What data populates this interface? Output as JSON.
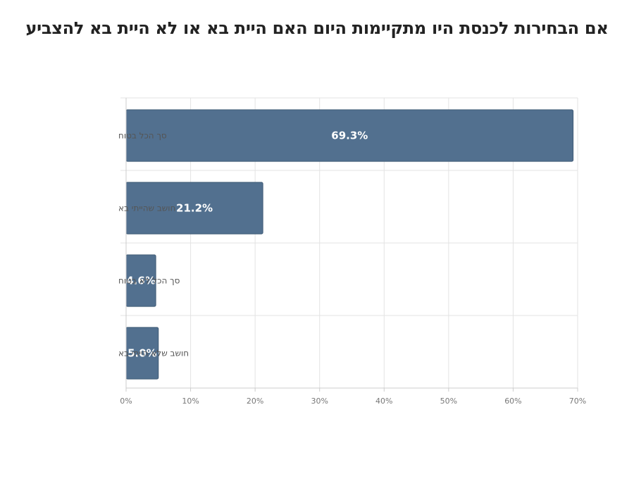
{
  "chart_data": {
    "type": "bar",
    "orientation": "horizontal",
    "title": "אם הבחירות לכנסת היו מתקיימות היום האם היית בא או לא היית בא להצביע",
    "categories": [
      "סך הכל בטוח",
      "חושב שהייתי בא",
      "סך הכל לא בטוח",
      "חושב שלא הייתי בא"
    ],
    "values": [
      69.3,
      21.2,
      4.6,
      5.0
    ],
    "data_labels": [
      "69.3%",
      "21.2%",
      "4.6%",
      "5.0%"
    ],
    "xlim": [
      0,
      70
    ],
    "xticks": [
      0,
      10,
      20,
      30,
      40,
      50,
      60,
      70
    ],
    "xtick_labels": [
      "0%",
      "10%",
      "20%",
      "30%",
      "40%",
      "50%",
      "60%",
      "70%"
    ],
    "grid": true,
    "legend": "none",
    "bar_color": "#52708f",
    "bar_edge_color": "#3f5a75"
  }
}
